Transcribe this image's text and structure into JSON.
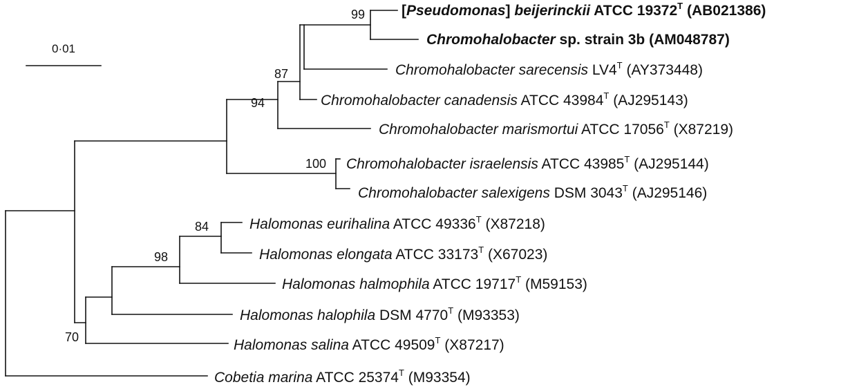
{
  "scale_bar": {
    "label": "0·01"
  },
  "bootstrap_values": [
    "99",
    "87",
    "94",
    "100",
    "84",
    "98",
    "70"
  ],
  "taxa": [
    {
      "bold": true,
      "bracket_open": "[",
      "genus": "Pseudomonas",
      "bracket_close": "]",
      "species": "beijerinckii",
      "strain": "ATCC 19372",
      "type_mark": "T",
      "accession": "(AB021386)"
    },
    {
      "bold": true,
      "genus": "Chromohalobacter",
      "species": "",
      "strain": "sp. strain 3b",
      "type_mark": "",
      "accession": "(AM048787)"
    },
    {
      "bold": false,
      "genus": "Chromohalobacter",
      "species": "sarecensis",
      "strain": "LV4",
      "type_mark": "T",
      "accession": "(AY373448)"
    },
    {
      "bold": false,
      "genus": "Chromohalobacter",
      "species": "canadensis",
      "strain": "ATCC 43984",
      "type_mark": "T",
      "accession": "(AJ295143)"
    },
    {
      "bold": false,
      "genus": "Chromohalobacter",
      "species": "marismortui",
      "strain": "ATCC 17056",
      "type_mark": "T",
      "accession": "(X87219)"
    },
    {
      "bold": false,
      "genus": "Chromohalobacter",
      "species": "israelensis",
      "strain": "ATCC 43985",
      "type_mark": "T",
      "accession": "(AJ295144)"
    },
    {
      "bold": false,
      "genus": "Chromohalobacter",
      "species": "salexigens",
      "strain": "DSM 3043",
      "type_mark": "T",
      "accession": "(AJ295146)"
    },
    {
      "bold": false,
      "genus": "Halomonas",
      "species": "eurihalina",
      "strain": "ATCC 49336",
      "type_mark": "T",
      "accession": "(X87218)"
    },
    {
      "bold": false,
      "genus": "Halomonas",
      "species": "elongata",
      "strain": "ATCC 33173",
      "type_mark": "T",
      "accession": "(X67023)"
    },
    {
      "bold": false,
      "genus": "Halomonas",
      "species": "halmophila",
      "strain": "ATCC 19717",
      "type_mark": "T",
      "accession": "(M59153)"
    },
    {
      "bold": false,
      "genus": "Halomonas",
      "species": "halophila",
      "strain": "DSM 4770",
      "type_mark": "T",
      "accession": "(M93353)"
    },
    {
      "bold": false,
      "genus": "Halomonas",
      "species": "salina",
      "strain": "ATCC 49509",
      "type_mark": "T",
      "accession": "(X87217)"
    },
    {
      "bold": false,
      "genus": "Cobetia",
      "species": "marina",
      "strain": "ATCC 25374",
      "type_mark": "T",
      "accession": "(M93354)"
    }
  ]
}
